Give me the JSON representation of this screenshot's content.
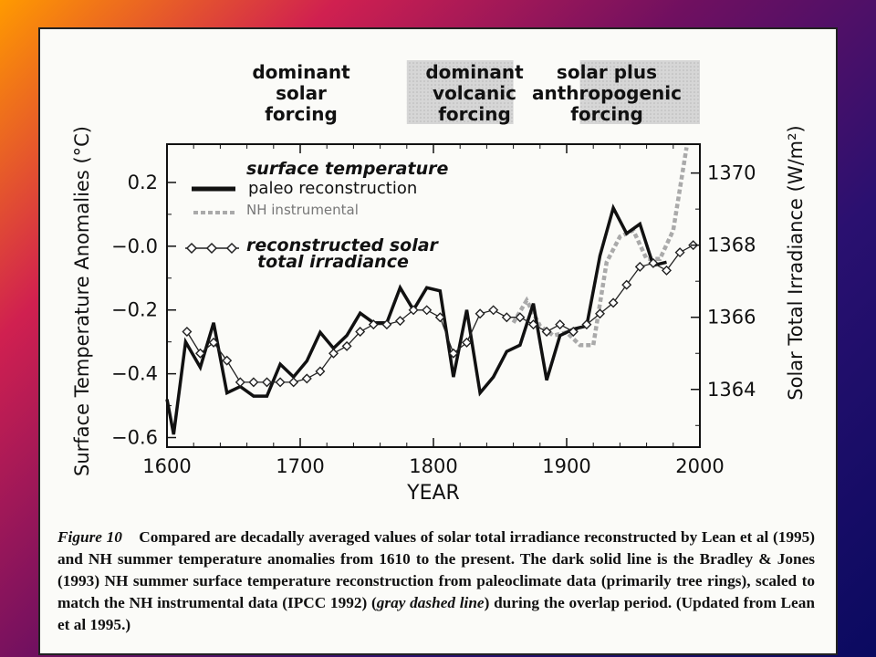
{
  "regimes": [
    {
      "lines": [
        "dominant",
        "solar",
        "forcing"
      ]
    },
    {
      "lines": [
        "dominant",
        "volcanic",
        "forcing"
      ]
    },
    {
      "lines": [
        "solar plus",
        "anthropogenic",
        "forcing"
      ]
    }
  ],
  "legend": {
    "temp_heading": "surface temperature",
    "paleo": "paleo reconstruction",
    "instrumental": "NH instrumental",
    "solar_line1": "reconstructed solar",
    "solar_line2": "total irradiance"
  },
  "caption": {
    "figure_label": "Figure 10",
    "text1": "Compared are decadally averaged values of solar total irradiance reconstructed by Lean et al (1995) and NH summer temperature anomalies from 1610 to the present. The dark solid line is the Bradley & Jones (1993) NH summer surface temperature reconstruction from paleoclimate data (primarily tree rings), scaled to match the NH instrumental data (IPCC 1992) (",
    "italic": "gray dashed line",
    "text2": ") during the overlap period. (Updated from Lean et al 1995.)"
  },
  "colors": {
    "paleo": "#111111",
    "instrumental": "#aaaaaa",
    "solar": "#222222",
    "shade": "#d0d0d0"
  },
  "chart_data": {
    "type": "line",
    "xlabel": "YEAR",
    "ylabel": "Surface Temperature Anomalies (°C)",
    "y2label": "Solar Total Irradiance (W/m²)",
    "xlim": [
      1600,
      2000
    ],
    "ylim": [
      -0.63,
      0.32
    ],
    "y2lim": [
      1362.4,
      1370.8
    ],
    "xticks": [
      1600,
      1700,
      1800,
      1900,
      2000
    ],
    "xtick_labels": [
      "1600",
      "1700",
      "1800",
      "1900",
      "2000"
    ],
    "yticks": [
      0.2,
      0.0,
      -0.2,
      -0.4,
      -0.6
    ],
    "ytick_labels": [
      "0.2",
      "−0.0",
      "−0.2",
      "−0.4",
      "−0.6"
    ],
    "y2ticks": [
      1364,
      1366,
      1368,
      1370
    ],
    "y2tick_labels": [
      "1364",
      "1366",
      "1368",
      "1370"
    ],
    "shaded_regions": [
      [
        1780,
        1860
      ],
      [
        1910,
        2000
      ]
    ],
    "series": [
      {
        "name": "paleo reconstruction",
        "axis": "left",
        "style": "solid",
        "x": [
          1600,
          1605,
          1614,
          1625,
          1635,
          1645,
          1655,
          1665,
          1675,
          1685,
          1695,
          1705,
          1715,
          1725,
          1735,
          1745,
          1755,
          1765,
          1775,
          1785,
          1795,
          1805,
          1815,
          1825,
          1835,
          1845,
          1855,
          1865,
          1875,
          1885,
          1895,
          1905,
          1915,
          1925,
          1935,
          1945,
          1955,
          1965,
          1975
        ],
        "y": [
          -0.48,
          -0.59,
          -0.3,
          -0.38,
          -0.24,
          -0.46,
          -0.44,
          -0.47,
          -0.47,
          -0.37,
          -0.41,
          -0.36,
          -0.27,
          -0.32,
          -0.28,
          -0.21,
          -0.24,
          -0.24,
          -0.13,
          -0.2,
          -0.13,
          -0.14,
          -0.41,
          -0.2,
          -0.46,
          -0.41,
          -0.33,
          -0.31,
          -0.18,
          -0.42,
          -0.28,
          -0.26,
          -0.25,
          -0.03,
          0.12,
          0.04,
          0.07,
          -0.06,
          -0.05
        ]
      },
      {
        "name": "NH instrumental",
        "axis": "left",
        "style": "dashed",
        "x": [
          1860,
          1870,
          1880,
          1890,
          1900,
          1910,
          1920,
          1930,
          1940,
          1950,
          1960,
          1970,
          1980,
          1990
        ],
        "y": [
          -0.24,
          -0.17,
          -0.25,
          -0.28,
          -0.27,
          -0.31,
          -0.31,
          -0.05,
          0.03,
          0.05,
          -0.04,
          -0.04,
          0.05,
          0.31
        ]
      },
      {
        "name": "reconstructed solar total irradiance",
        "axis": "right",
        "style": "line-diamond",
        "x": [
          1615,
          1625,
          1635,
          1645,
          1655,
          1665,
          1675,
          1685,
          1695,
          1705,
          1715,
          1725,
          1735,
          1745,
          1755,
          1765,
          1775,
          1785,
          1795,
          1805,
          1815,
          1825,
          1835,
          1845,
          1855,
          1865,
          1875,
          1885,
          1895,
          1905,
          1915,
          1925,
          1935,
          1945,
          1955,
          1965,
          1975,
          1985,
          1995
        ],
        "y": [
          1365.6,
          1365.0,
          1365.3,
          1364.8,
          1364.2,
          1364.2,
          1364.2,
          1364.2,
          1364.2,
          1364.3,
          1364.5,
          1365.0,
          1365.2,
          1365.6,
          1365.8,
          1365.8,
          1365.9,
          1366.2,
          1366.2,
          1366.0,
          1365.0,
          1365.3,
          1366.1,
          1366.2,
          1366.0,
          1366.0,
          1365.8,
          1365.6,
          1365.8,
          1365.6,
          1365.8,
          1366.1,
          1366.4,
          1366.9,
          1367.4,
          1367.5,
          1367.3,
          1367.8,
          1368.0
        ]
      }
    ]
  }
}
